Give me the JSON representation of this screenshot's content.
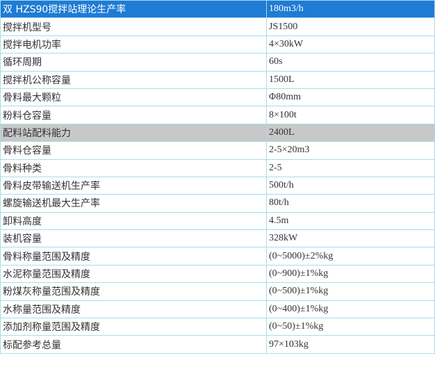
{
  "table": {
    "rows": [
      [
        "双 HZS90搅拌站理论生产率",
        "180m3/h"
      ],
      [
        "搅拌机型号",
        "JS1500"
      ],
      [
        "搅拌电机功率",
        "4×30kW"
      ],
      [
        "循环周期",
        "60s"
      ],
      [
        "搅拌机公称容量",
        "1500L"
      ],
      [
        "骨料最大颗粒",
        "Φ80mm"
      ],
      [
        "粉料仓容量",
        "8×100t"
      ],
      [
        "配料站配料能力",
        "2400L"
      ],
      [
        "骨料仓容量",
        "2-5×20m3"
      ],
      [
        "骨料种类",
        "2-5"
      ],
      [
        "骨料皮带输送机生产率",
        "500t/h"
      ],
      [
        "螺旋输送机最大生产率",
        "80t/h"
      ],
      [
        "卸料高度",
        "4.5m"
      ],
      [
        "装机容量",
        "328kW"
      ],
      [
        "骨料称量范围及精度",
        "(0~5000)±2%kg"
      ],
      [
        "水泥称量范围及精度",
        "(0~900)±1%kg"
      ],
      [
        "粉煤灰称量范围及精度",
        "(0~500)±1%kg"
      ],
      [
        "水称量范围及精度",
        "(0~400)±1%kg"
      ],
      [
        "添加剂称量范围及精度",
        "(0~50)±1%kg"
      ],
      [
        "标配参考总量",
        "97×103kg"
      ]
    ]
  }
}
